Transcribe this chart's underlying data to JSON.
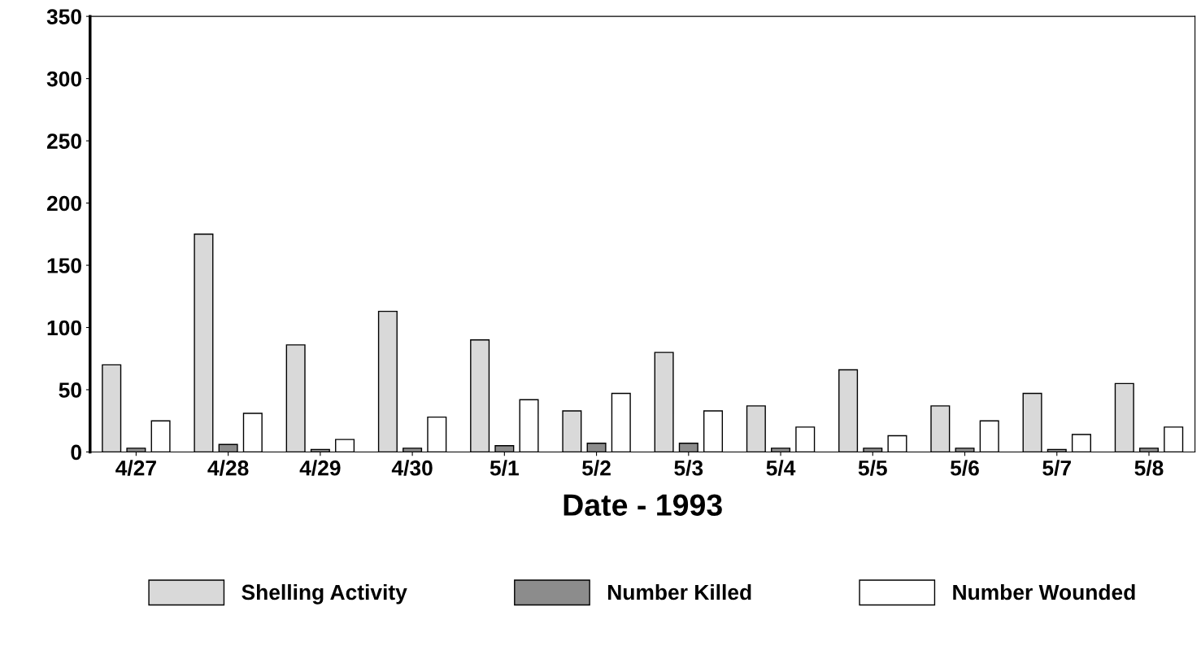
{
  "chart_data": {
    "type": "bar",
    "xlabel": "Date - 1993",
    "categories": [
      "4/27",
      "4/28",
      "4/29",
      "4/30",
      "5/1",
      "5/2",
      "5/3",
      "5/4",
      "5/5",
      "5/6",
      "5/7",
      "5/8"
    ],
    "series": [
      {
        "name": "Shelling Activity",
        "color": "#d9d9d9",
        "values": [
          70,
          175,
          86,
          113,
          90,
          33,
          80,
          37,
          66,
          37,
          47,
          55
        ]
      },
      {
        "name": "Number Killed",
        "color": "#8c8c8c",
        "values": [
          3,
          6,
          2,
          3,
          5,
          7,
          7,
          3,
          3,
          3,
          2,
          3
        ]
      },
      {
        "name": "Number Wounded",
        "color": "#ffffff",
        "values": [
          25,
          31,
          10,
          28,
          42,
          47,
          33,
          20,
          13,
          25,
          14,
          20
        ]
      }
    ],
    "ylim": [
      0,
      350
    ],
    "yticks": [
      0,
      50,
      100,
      150,
      200,
      250,
      300,
      350
    ],
    "grid": false,
    "legend": "bottom"
  }
}
